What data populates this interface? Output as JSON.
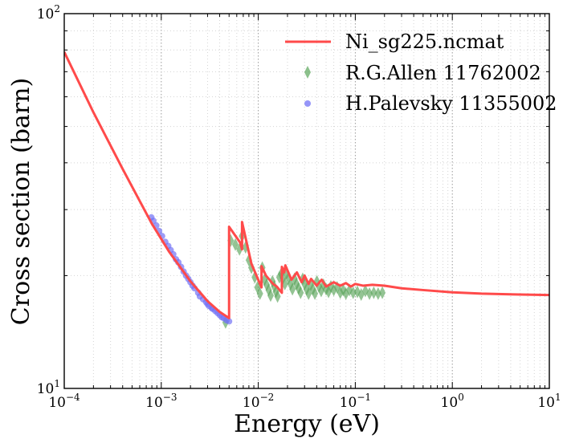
{
  "chart_data": {
    "type": "scatter",
    "xscale": "log",
    "yscale": "log",
    "xlim": [
      0.0001,
      10
    ],
    "ylim": [
      10,
      100
    ],
    "xlabel": "Energy (eV)",
    "ylabel": "Cross section (barn)",
    "grid": true,
    "legend_position": "top-right",
    "x_ticks": [
      {
        "value": 0.0001,
        "base": "10",
        "exp": "−4"
      },
      {
        "value": 0.001,
        "base": "10",
        "exp": "−3"
      },
      {
        "value": 0.01,
        "base": "10",
        "exp": "−2"
      },
      {
        "value": 0.1,
        "base": "10",
        "exp": "−1"
      },
      {
        "value": 1,
        "base": "10",
        "exp": "0"
      },
      {
        "value": 10,
        "base": "10",
        "exp": "1"
      }
    ],
    "y_ticks": [
      {
        "value": 10,
        "base": "10",
        "exp": "1"
      },
      {
        "value": 100,
        "base": "10",
        "exp": "2"
      }
    ],
    "series": [
      {
        "name": "Ni_sg225.ncmat",
        "kind": "line",
        "color": "#ff4a4a",
        "x": [
          0.0001,
          0.0002,
          0.0004,
          0.0008,
          0.0012,
          0.002,
          0.003,
          0.004,
          0.005,
          0.005,
          0.0065,
          0.0068,
          0.0068,
          0.0085,
          0.0108,
          0.0108,
          0.012,
          0.0142,
          0.0155,
          0.0175,
          0.0175,
          0.0185,
          0.019,
          0.022,
          0.025,
          0.028,
          0.03,
          0.033,
          0.035,
          0.04,
          0.045,
          0.05,
          0.06,
          0.07,
          0.08,
          0.09,
          0.1,
          0.12,
          0.15,
          0.2,
          0.3,
          0.5,
          1,
          2,
          5,
          10
        ],
        "y": [
          79,
          54.5,
          38.5,
          27.5,
          23.2,
          19.3,
          17.1,
          16.0,
          15.4,
          27.0,
          24.5,
          23.5,
          27.8,
          21.5,
          18.6,
          21.2,
          20.0,
          19.0,
          18.7,
          18.0,
          21.1,
          20.4,
          21.3,
          19.5,
          20.4,
          19.2,
          20.0,
          19.0,
          19.6,
          18.8,
          19.5,
          18.7,
          19.2,
          18.8,
          19.1,
          18.7,
          19.0,
          18.8,
          18.9,
          18.8,
          18.5,
          18.3,
          18.05,
          17.9,
          17.8,
          17.75
        ]
      },
      {
        "name": "R.G.Allen 11762002",
        "kind": "markers",
        "marker": "diamond",
        "color": "#5aa55a",
        "x": [
          0.0046,
          0.0052,
          0.0058,
          0.0064,
          0.0068,
          0.0074,
          0.008,
          0.0085,
          0.0092,
          0.0098,
          0.0104,
          0.011,
          0.0116,
          0.0122,
          0.0128,
          0.0134,
          0.014,
          0.0146,
          0.0152,
          0.0158,
          0.0165,
          0.0172,
          0.018,
          0.0188,
          0.0196,
          0.0205,
          0.0215,
          0.0225,
          0.0236,
          0.0248,
          0.026,
          0.0273,
          0.0287,
          0.03,
          0.0315,
          0.033,
          0.0347,
          0.0365,
          0.0383,
          0.0402,
          0.0422,
          0.0445,
          0.047,
          0.05,
          0.053,
          0.056,
          0.06,
          0.065,
          0.07,
          0.075,
          0.08,
          0.087,
          0.095,
          0.105,
          0.115,
          0.127,
          0.14,
          0.155,
          0.172,
          0.19
        ],
        "y": [
          15.0,
          24.8,
          24.2,
          23.5,
          25.5,
          23.8,
          22.0,
          21.0,
          19.8,
          18.6,
          17.9,
          21.0,
          19.5,
          18.9,
          18.3,
          17.7,
          19.3,
          18.7,
          18.1,
          17.6,
          19.8,
          20.2,
          19.7,
          19.0,
          20.3,
          19.7,
          19.0,
          18.4,
          19.6,
          19.0,
          18.5,
          18.0,
          19.6,
          19.0,
          18.4,
          17.9,
          18.9,
          18.4,
          17.9,
          19.3,
          18.7,
          18.2,
          18.9,
          18.4,
          18.1,
          18.7,
          18.3,
          18.6,
          18.0,
          18.3,
          17.9,
          18.3,
          18.0,
          18.1,
          17.8,
          18.2,
          17.9,
          18.0,
          17.9,
          18.0
        ]
      },
      {
        "name": "H.Palevsky 11355002",
        "kind": "markers",
        "marker": "circle",
        "color": "#7272f5",
        "x": [
          0.00079,
          0.00083,
          0.00089,
          0.00095,
          0.00102,
          0.0011,
          0.00118,
          0.00125,
          0.00133,
          0.00142,
          0.0015,
          0.0016,
          0.0017,
          0.0018,
          0.0019,
          0.002,
          0.0021,
          0.0022,
          0.0024,
          0.0025,
          0.0027,
          0.0029,
          0.003,
          0.0031,
          0.0033,
          0.0034,
          0.0036,
          0.0038,
          0.004,
          0.0042,
          0.0044,
          0.0047,
          0.005
        ],
        "y": [
          28.6,
          28.0,
          27.2,
          26.3,
          25.5,
          24.6,
          24.0,
          23.4,
          22.8,
          22.1,
          21.7,
          21.1,
          20.5,
          20.0,
          19.6,
          19.2,
          18.8,
          18.5,
          18.0,
          17.6,
          17.3,
          17.0,
          16.8,
          16.6,
          16.4,
          16.3,
          16.1,
          15.9,
          15.7,
          15.5,
          15.4,
          15.2,
          15.1
        ]
      }
    ]
  }
}
